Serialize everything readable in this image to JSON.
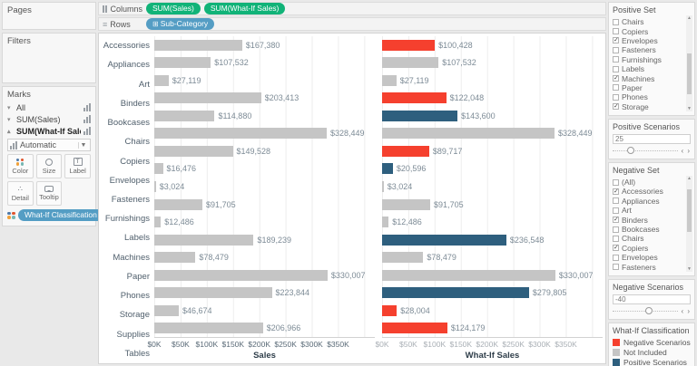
{
  "colors": {
    "negative": "#f5402e",
    "positive": "#2e5f7e",
    "not_included": "#c5c5c5",
    "pill_green": "#11b378",
    "pill_blue": "#549dc4"
  },
  "shelves": {
    "columns": {
      "label": "Columns",
      "pills": [
        "SUM(Sales)",
        "SUM(What-If Sales)"
      ]
    },
    "rows": {
      "label": "Rows",
      "pill": "Sub-Category"
    }
  },
  "left_panel": {
    "pages_title": "Pages",
    "filters_title": "Filters",
    "marks": {
      "title": "Marks",
      "layers": [
        "All",
        "SUM(Sales)",
        "SUM(What-If Sales)"
      ],
      "mark_type": "Automatic",
      "buttons": {
        "color": "Color",
        "size": "Size",
        "label": "Label",
        "detail": "Detail",
        "tooltip": "Tooltip"
      },
      "legend_pill": "What-If Classification"
    }
  },
  "chart_data": {
    "type": "bar",
    "categories": [
      "Accessories",
      "Appliances",
      "Art",
      "Binders",
      "Bookcases",
      "Chairs",
      "Copiers",
      "Envelopes",
      "Fasteners",
      "Furnishings",
      "Labels",
      "Machines",
      "Paper",
      "Phones",
      "Storage",
      "Supplies",
      "Tables"
    ],
    "series": [
      {
        "name": "Sales",
        "values": [
          167380,
          107532,
          27119,
          203413,
          114880,
          328449,
          149528,
          16476,
          3024,
          91705,
          12486,
          189239,
          78479,
          330007,
          223844,
          46674,
          206966
        ],
        "labels": [
          "$167,380",
          "$107,532",
          "$27,119",
          "$203,413",
          "$114,880",
          "$328,449",
          "$149,528",
          "$16,476",
          "$3,024",
          "$91,705",
          "$12,486",
          "$189,239",
          "$78,479",
          "$330,007",
          "$223,844",
          "$46,674",
          "$206,966"
        ],
        "classes": [
          "not_included",
          "not_included",
          "not_included",
          "not_included",
          "not_included",
          "not_included",
          "not_included",
          "not_included",
          "not_included",
          "not_included",
          "not_included",
          "not_included",
          "not_included",
          "not_included",
          "not_included",
          "not_included",
          "not_included"
        ]
      },
      {
        "name": "What-If Sales",
        "values": [
          100428,
          107532,
          27119,
          122048,
          143600,
          328449,
          89717,
          20596,
          3024,
          91705,
          12486,
          236548,
          78479,
          330007,
          279805,
          28004,
          124179
        ],
        "labels": [
          "$100,428",
          "$107,532",
          "$27,119",
          "$122,048",
          "$143,600",
          "$328,449",
          "$89,717",
          "$20,596",
          "$3,024",
          "$91,705",
          "$12,486",
          "$236,548",
          "$78,479",
          "$330,007",
          "$279,805",
          "$28,004",
          "$124,179"
        ],
        "classes": [
          "negative",
          "not_included",
          "not_included",
          "negative",
          "positive",
          "not_included",
          "negative",
          "positive",
          "not_included",
          "not_included",
          "not_included",
          "positive",
          "not_included",
          "not_included",
          "positive",
          "negative",
          "negative"
        ]
      }
    ],
    "x_ticks": [
      "$0K",
      "$50K",
      "$100K",
      "$150K",
      "$200K",
      "$250K",
      "$300K",
      "$350K"
    ],
    "tick_interval": 50000,
    "axis_max": 420000,
    "xlim": [
      0,
      350000
    ],
    "grid": true,
    "xlabel_left": "Sales",
    "xlabel_right": "What-If Sales",
    "title": ""
  },
  "right_panel": {
    "positive_set": {
      "title": "Positive Set",
      "items": [
        {
          "label": "Chairs",
          "checked": false
        },
        {
          "label": "Copiers",
          "checked": false
        },
        {
          "label": "Envelopes",
          "checked": true
        },
        {
          "label": "Fasteners",
          "checked": false
        },
        {
          "label": "Furnishings",
          "checked": false
        },
        {
          "label": "Labels",
          "checked": false
        },
        {
          "label": "Machines",
          "checked": true
        },
        {
          "label": "Paper",
          "checked": false
        },
        {
          "label": "Phones",
          "checked": false
        },
        {
          "label": "Storage",
          "checked": true
        }
      ]
    },
    "positive_scenarios": {
      "title": "Positive Scenarios",
      "value": "25",
      "thumb_pct": 27
    },
    "negative_set": {
      "title": "Negative Set",
      "items": [
        {
          "label": "(All)",
          "checked": false
        },
        {
          "label": "Accessories",
          "checked": true
        },
        {
          "label": "Appliances",
          "checked": false
        },
        {
          "label": "Art",
          "checked": false
        },
        {
          "label": "Binders",
          "checked": true
        },
        {
          "label": "Bookcases",
          "checked": false
        },
        {
          "label": "Chairs",
          "checked": false
        },
        {
          "label": "Copiers",
          "checked": true
        },
        {
          "label": "Envelopes",
          "checked": false
        },
        {
          "label": "Fasteners",
          "checked": false
        }
      ]
    },
    "negative_scenarios": {
      "title": "Negative Scenarios",
      "value": "-40",
      "thumb_pct": 55
    },
    "legend": {
      "title": "What-If Classification",
      "items": [
        {
          "label": "Negative Scenarios",
          "color": "#f5402e"
        },
        {
          "label": "Not Included",
          "color": "#c5c5c5"
        },
        {
          "label": "Positive Scenarios",
          "color": "#2e5f7e"
        }
      ]
    }
  }
}
